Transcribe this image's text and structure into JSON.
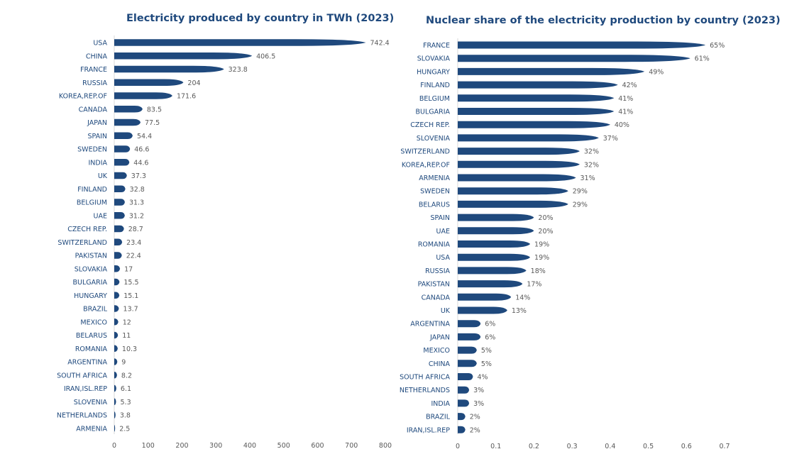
{
  "chart_data": [
    {
      "type": "bar",
      "orientation": "horizontal",
      "title": "Electricity produced by country  in TWh (2023)",
      "xlabel": "",
      "ylabel": "",
      "xlim": [
        0,
        800
      ],
      "xticks": [
        "0",
        "100",
        "200",
        "300",
        "400",
        "500",
        "600",
        "700",
        "800"
      ],
      "grid": false,
      "legend": "none",
      "bar_color": "#1f497d",
      "categories": [
        "USA",
        "CHINA",
        "FRANCE",
        "RUSSIA",
        "KOREA,REP.OF",
        "CANADA",
        "JAPAN",
        "SPAIN",
        "SWEDEN",
        "INDIA",
        "UK",
        "FINLAND",
        "BELGIUM",
        "UAE",
        "CZECH REP.",
        "SWITZERLAND",
        "PAKISTAN",
        "SLOVAKIA",
        "BULGARIA",
        "HUNGARY",
        "BRAZIL",
        "MEXICO",
        "BELARUS",
        "ROMANIA",
        "ARGENTINA",
        "SOUTH AFRICA",
        "IRAN,ISL.REP",
        "SLOVENIA",
        "NETHERLANDS",
        "ARMENIA"
      ],
      "values": [
        742.4,
        406.5,
        323.8,
        204,
        171.6,
        83.5,
        77.5,
        54.4,
        46.6,
        44.6,
        37.3,
        32.8,
        31.3,
        31.2,
        28.7,
        23.4,
        22.4,
        17,
        15.5,
        15.1,
        13.7,
        12,
        11,
        10.3,
        9,
        8.2,
        6.1,
        5.3,
        3.8,
        2.5
      ],
      "labels": [
        "742.4",
        "406.5",
        "323.8",
        "204",
        "171.6",
        "83.5",
        "77.5",
        "54.4",
        "46.6",
        "44.6",
        "37.3",
        "32.8",
        "31.3",
        "31.2",
        "28.7",
        "23.4",
        "22.4",
        "17",
        "15.5",
        "15.1",
        "13.7",
        "12",
        "11",
        "10.3",
        "9",
        "8.2",
        "6.1",
        "5.3",
        "3.8",
        "2.5"
      ]
    },
    {
      "type": "bar",
      "orientation": "horizontal",
      "title": "Nuclear share  of the electricity production by country (2023)",
      "xlabel": "",
      "ylabel": "",
      "xlim": [
        0,
        0.7
      ],
      "xticks": [
        "0",
        "0.1",
        "0.2",
        "0.3",
        "0.4",
        "0.5",
        "0.6",
        "0.7"
      ],
      "grid": false,
      "legend": "none",
      "bar_color": "#1f497d",
      "categories": [
        "FRANCE",
        "SLOVAKIA",
        "HUNGARY",
        "FINLAND",
        "BELGIUM",
        "BULGARIA",
        "CZECH REP.",
        "SLOVENIA",
        "SWITZERLAND",
        "KOREA,REP.OF",
        "ARMENIA",
        "SWEDEN",
        "BELARUS",
        "SPAIN",
        "UAE",
        "ROMANIA",
        "USA",
        "RUSSIA",
        "PAKISTAN",
        "CANADA",
        "UK",
        "ARGENTINA",
        "JAPAN",
        "MEXICO",
        "CHINA",
        "SOUTH AFRICA",
        "NETHERLANDS",
        "INDIA",
        "BRAZIL",
        "IRAN,ISL.REP"
      ],
      "values": [
        0.65,
        0.61,
        0.49,
        0.42,
        0.41,
        0.41,
        0.4,
        0.37,
        0.32,
        0.32,
        0.31,
        0.29,
        0.29,
        0.2,
        0.2,
        0.19,
        0.19,
        0.18,
        0.17,
        0.14,
        0.13,
        0.06,
        0.06,
        0.05,
        0.05,
        0.04,
        0.03,
        0.03,
        0.02,
        0.02
      ],
      "labels": [
        "65%",
        "61%",
        "49%",
        "42%",
        "41%",
        "41%",
        "40%",
        "37%",
        "32%",
        "32%",
        "31%",
        "29%",
        "29%",
        "20%",
        "20%",
        "19%",
        "19%",
        "18%",
        "17%",
        "14%",
        "13%",
        "6%",
        "6%",
        "5%",
        "5%",
        "4%",
        "3%",
        "3%",
        "2%",
        "2%"
      ]
    }
  ]
}
